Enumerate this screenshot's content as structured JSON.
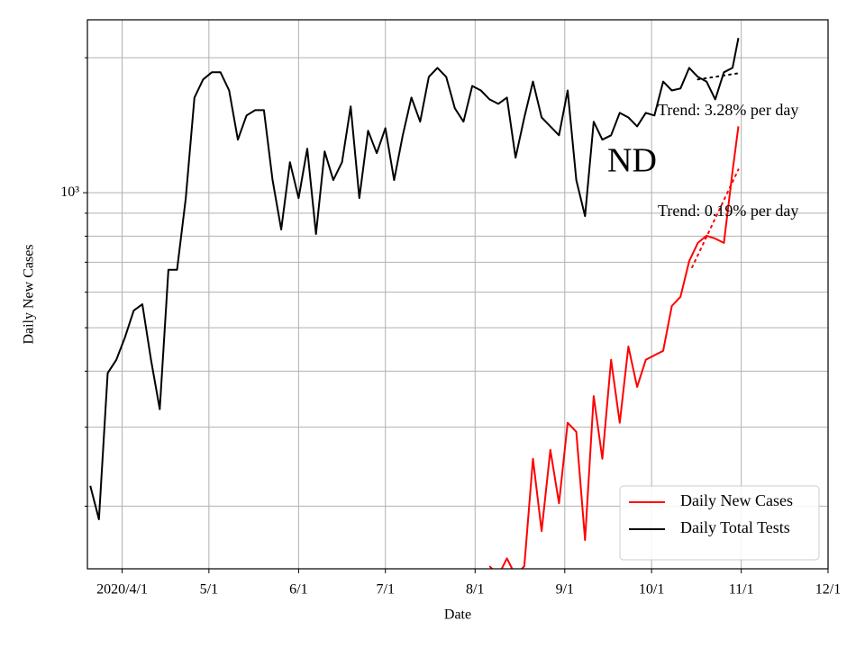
{
  "chart_data": {
    "type": "line",
    "annotation": "ND",
    "xlabel": "Date",
    "ylabel": "Daily New Cases",
    "yscale": "log",
    "grid": true,
    "legend": "lower right",
    "xlim": [
      "2020-03-20",
      "2020-12-01"
    ],
    "xticks": [
      {
        "value": "2020-04-01",
        "label": "2020/4/1"
      },
      {
        "value": "2020-05-01",
        "label": "5/1"
      },
      {
        "value": "2020-06-01",
        "label": "6/1"
      },
      {
        "value": "2020-07-01",
        "label": "7/1"
      },
      {
        "value": "2020-08-01",
        "label": "8/1"
      },
      {
        "value": "2020-09-01",
        "label": "9/1"
      },
      {
        "value": "2020-10-01",
        "label": "10/1"
      },
      {
        "value": "2020-11-01",
        "label": "11/1"
      },
      {
        "value": "2020-12-01",
        "label": "12/1"
      }
    ],
    "ylim": [
      145,
      2430
    ],
    "yticks": [
      {
        "value": 1000,
        "label": "10³"
      }
    ],
    "yminorticks": [
      200,
      300,
      400,
      500,
      600,
      700,
      800,
      900,
      2000
    ],
    "x": [
      "2020-03-21",
      "2020-03-24",
      "2020-03-27",
      "2020-03-30",
      "2020-04-02",
      "2020-04-05",
      "2020-04-08",
      "2020-04-11",
      "2020-04-14",
      "2020-04-17",
      "2020-04-20",
      "2020-04-23",
      "2020-04-26",
      "2020-04-29",
      "2020-05-02",
      "2020-05-05",
      "2020-05-08",
      "2020-05-11",
      "2020-05-14",
      "2020-05-17",
      "2020-05-20",
      "2020-05-23",
      "2020-05-26",
      "2020-05-29",
      "2020-06-01",
      "2020-06-04",
      "2020-06-07",
      "2020-06-10",
      "2020-06-13",
      "2020-06-16",
      "2020-06-19",
      "2020-06-22",
      "2020-06-25",
      "2020-06-28",
      "2020-07-01",
      "2020-07-04",
      "2020-07-07",
      "2020-07-10",
      "2020-07-13",
      "2020-07-16",
      "2020-07-19",
      "2020-07-22",
      "2020-07-25",
      "2020-07-28",
      "2020-07-31",
      "2020-08-03",
      "2020-08-06",
      "2020-08-09",
      "2020-08-12",
      "2020-08-15",
      "2020-08-18",
      "2020-08-21",
      "2020-08-24",
      "2020-08-27",
      "2020-08-30",
      "2020-09-02",
      "2020-09-05",
      "2020-09-08",
      "2020-09-11",
      "2020-09-14",
      "2020-09-17",
      "2020-09-20",
      "2020-09-23",
      "2020-09-26",
      "2020-09-29",
      "2020-10-02",
      "2020-10-05",
      "2020-10-08",
      "2020-10-11",
      "2020-10-14",
      "2020-10-17",
      "2020-10-20",
      "2020-10-23",
      "2020-10-26",
      "2020-10-29",
      "2020-10-31"
    ],
    "series": [
      {
        "name": "Daily New Cases",
        "color": "#ff0000",
        "values": [
          null,
          null,
          null,
          null,
          null,
          null,
          null,
          null,
          null,
          null,
          null,
          null,
          null,
          null,
          null,
          null,
          null,
          null,
          null,
          null,
          null,
          null,
          null,
          null,
          null,
          null,
          null,
          null,
          null,
          null,
          null,
          null,
          null,
          null,
          null,
          null,
          null,
          null,
          null,
          null,
          null,
          null,
          null,
          null,
          null,
          null,
          147,
          140,
          153,
          140,
          147,
          255,
          176,
          267,
          203,
          307,
          293,
          168,
          352,
          255,
          424,
          307,
          454,
          369,
          424,
          434,
          444,
          559,
          586,
          704,
          773,
          802,
          790,
          773,
          1117,
          1406
        ]
      },
      {
        "name": "Daily Total Tests",
        "color": "#000000",
        "values": [
          222,
          187,
          396,
          424,
          476,
          546,
          564,
          424,
          329,
          673,
          673,
          973,
          1630,
          1789,
          1856,
          1856,
          1691,
          1313,
          1487,
          1528,
          1528,
          1067,
          828,
          1170,
          973,
          1254,
          809,
          1236,
          1067,
          1170,
          1557,
          973,
          1375,
          1225,
          1393,
          1067,
          1343,
          1630,
          1440,
          1813,
          1899,
          1813,
          1543,
          1440,
          1730,
          1691,
          1615,
          1578,
          1630,
          1197,
          1472,
          1770,
          1472,
          1406,
          1343,
          1691,
          1067,
          887,
          1440,
          1313,
          1343,
          1507,
          1472,
          1406,
          1507,
          1487,
          1770,
          1691,
          1708,
          1899,
          1813,
          1770,
          1615,
          1856,
          1899,
          2213
        ]
      }
    ],
    "trends": [
      {
        "color": "#ff0000",
        "x": [
          "2020-10-15",
          "2020-10-31"
        ],
        "values": [
          682,
          1127
        ],
        "label": "Trend: 3.28% per day"
      },
      {
        "color": "#000000",
        "x": [
          "2020-10-17",
          "2020-10-31"
        ],
        "values": [
          1789,
          1847
        ],
        "label": "Trend: 0.19% per day"
      }
    ]
  }
}
